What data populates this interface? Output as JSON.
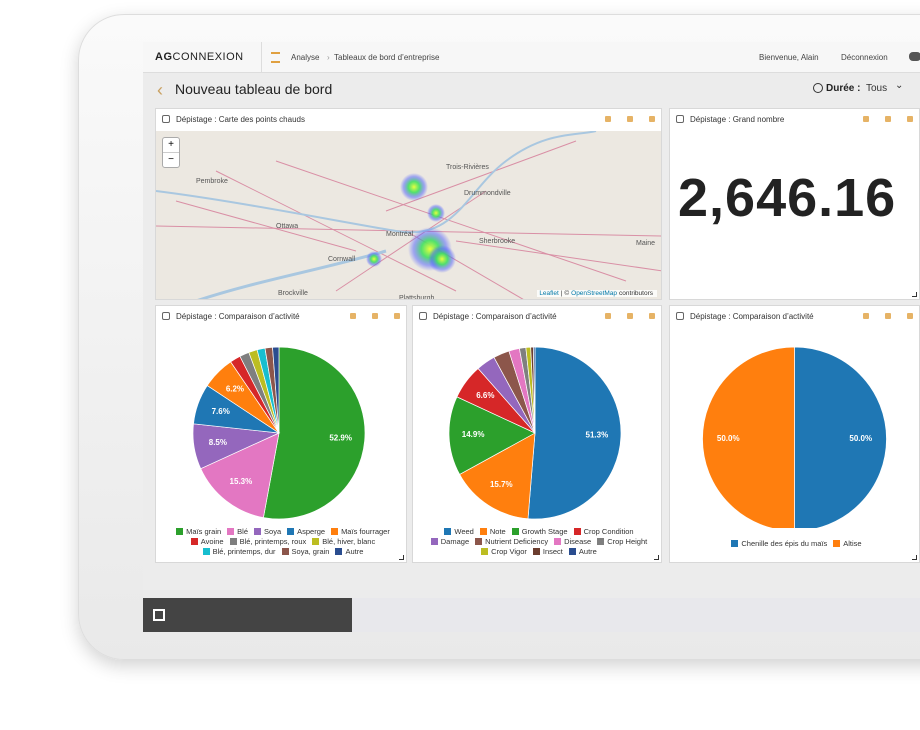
{
  "header": {
    "brand_bold": "AG",
    "brand": "CONNEXION",
    "breadcrumb": [
      "Analyse",
      "Tableaux de bord d’entreprise"
    ],
    "welcome": "Bienvenue, Alain",
    "logout": "Déconnexion"
  },
  "page": {
    "title": "Nouveau tableau de bord",
    "duration_label": "Durée :",
    "duration_value": "Tous"
  },
  "panels": [
    {
      "type": "map",
      "title": "Dépistage : Carte des points chauds",
      "zoom_in": "+",
      "zoom_out": "−",
      "places": [
        "Trois-Rivières",
        "Drummondville",
        "Pembroke",
        "Ottawa",
        "Montréal",
        "Sherbrooke",
        "Cornwall",
        "Brockville",
        "Plattsburgh",
        "Maine"
      ],
      "attribution_link1": "Leaflet",
      "attribution_sep": "| ©",
      "attribution_link2": "OpenStreetMap",
      "attribution_tail": "contributors"
    },
    {
      "type": "big_number",
      "title": "Dépistage : Grand nombre",
      "value": "2,646.16"
    },
    {
      "type": "pie",
      "title": "Dépistage : Comparaison d’activité",
      "labels": [
        "Maïs grain",
        "Blé",
        "Soya",
        "Asperge",
        "Maïs fourrager",
        "Avoine",
        "Blé, printemps, roux",
        "Blé, hiver, blanc",
        "Blé, printemps, dur",
        "Soya, grain",
        "Autre"
      ],
      "colors": [
        "#2ca02c",
        "#e377c2",
        "#9467bd",
        "#1f77b4",
        "#ff7f0e",
        "#d62728",
        "#7f7f7f",
        "#bcbd22",
        "#17becf",
        "#8c564b",
        "#2a4d8f"
      ],
      "values": [
        52.9,
        15.3,
        8.5,
        7.6,
        6.2,
        2.0,
        1.8,
        1.6,
        1.5,
        1.4,
        1.2
      ],
      "value_labels": [
        "52.9%",
        "15.3%",
        "8.5%",
        "7.6%",
        "6.2%",
        null,
        null,
        null,
        null,
        null,
        null
      ]
    },
    {
      "type": "pie",
      "title": "Dépistage : Comparaison d’activité",
      "labels": [
        "Weed",
        "Note",
        "Growth Stage",
        "Crop Condition",
        "Damage",
        "Nutrient Deficiency",
        "Disease",
        "Crop Height",
        "Crop Vigor",
        "Insect",
        "Autre"
      ],
      "colors": [
        "#1f77b4",
        "#ff7f0e",
        "#2ca02c",
        "#d62728",
        "#9467bd",
        "#8c564b",
        "#e377c2",
        "#7f7f7f",
        "#bcbd22",
        "#6b3d2e",
        "#2a4d8f"
      ],
      "values": [
        51.3,
        15.7,
        14.9,
        6.6,
        3.6,
        3.0,
        2.0,
        1.2,
        0.9,
        0.5,
        0.3
      ],
      "value_labels": [
        "51.3%",
        "15.7%",
        "14.9%",
        "6.6%",
        null,
        null,
        null,
        null,
        null,
        null,
        null
      ]
    },
    {
      "type": "pie",
      "title": "Dépistage : Comparaison d’activité",
      "labels": [
        "Chenille des épis du maïs",
        "Altise"
      ],
      "colors": [
        "#1f77b4",
        "#ff7f0e"
      ],
      "values": [
        50.0,
        50.0
      ],
      "value_labels": [
        "50.0%",
        "50.0%"
      ]
    }
  ]
}
